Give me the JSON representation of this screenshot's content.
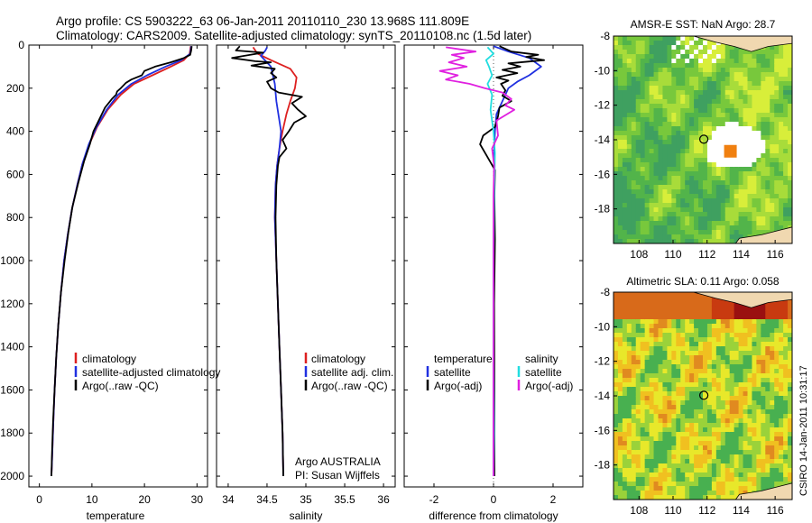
{
  "header": {
    "line1": "Argo profile: CS 5903222_63 06-Jan-2011 20110110_230 13.968S 111.809E",
    "line2": "Climatology: CARS2009. Satellite-adjusted climatology: synTS_20110108.nc (1.5d later)"
  },
  "footer": {
    "institution": "Argo AUSTRALIA",
    "pi": "PI: Susan Wijffels",
    "stamp": "CSIRO 14-Jan-2011 10:31:17"
  },
  "colors": {
    "climatology": "#dd2020",
    "satellite": "#2030e0",
    "argo": "#000000",
    "sat_salinity": "#22dde0",
    "argo_salinity": "#e020e0"
  },
  "chart_data": [
    {
      "id": "temperature",
      "type": "line",
      "xlabel": "temperature",
      "ylabel": "",
      "xlim": [
        -2,
        32
      ],
      "ylim": [
        2050,
        0
      ],
      "xticks": [
        0,
        10,
        20,
        30
      ],
      "yticks": [
        0,
        200,
        400,
        600,
        800,
        1000,
        1200,
        1400,
        1600,
        1800,
        2000
      ],
      "legend": [
        "climatology",
        "satellite-adjusted climatology",
        "Argo(..raw -QC)"
      ],
      "series": [
        {
          "name": "climatology",
          "color": "#dd2020",
          "points": [
            [
              28.8,
              5
            ],
            [
              28.6,
              40
            ],
            [
              27.5,
              70
            ],
            [
              25,
              100
            ],
            [
              21.5,
              140
            ],
            [
              18,
              180
            ],
            [
              15.5,
              230
            ],
            [
              13,
              300
            ],
            [
              11,
              380
            ],
            [
              9.5,
              460
            ],
            [
              8.2,
              550
            ],
            [
              7.2,
              650
            ],
            [
              6.2,
              760
            ],
            [
              5.4,
              880
            ],
            [
              4.7,
              1000
            ],
            [
              4.1,
              1150
            ],
            [
              3.6,
              1300
            ],
            [
              3.2,
              1450
            ],
            [
              2.9,
              1600
            ],
            [
              2.65,
              1750
            ],
            [
              2.45,
              1900
            ],
            [
              2.3,
              2000
            ]
          ]
        },
        {
          "name": "satellite-adjusted climatology",
          "color": "#2030e0",
          "points": [
            [
              28.9,
              5
            ],
            [
              28.7,
              40
            ],
            [
              27,
              70
            ],
            [
              24,
              100
            ],
            [
              20.5,
              140
            ],
            [
              17.5,
              180
            ],
            [
              15,
              230
            ],
            [
              12.8,
              300
            ],
            [
              10.9,
              380
            ],
            [
              9.4,
              460
            ],
            [
              8.2,
              550
            ],
            [
              7.2,
              650
            ],
            [
              6.2,
              760
            ],
            [
              5.4,
              880
            ],
            [
              4.7,
              1000
            ],
            [
              4.1,
              1150
            ],
            [
              3.6,
              1300
            ],
            [
              3.2,
              1450
            ],
            [
              2.9,
              1600
            ],
            [
              2.65,
              1750
            ],
            [
              2.45,
              1900
            ],
            [
              2.3,
              2000
            ]
          ]
        },
        {
          "name": "Argo(..raw -QC)",
          "color": "#000000",
          "points": [
            [
              29,
              5
            ],
            [
              28.9,
              25
            ],
            [
              28.7,
              45
            ],
            [
              27.5,
              60
            ],
            [
              25,
              80
            ],
            [
              22,
              100
            ],
            [
              20,
              120
            ],
            [
              19.5,
              140
            ],
            [
              17.5,
              160
            ],
            [
              16.5,
              175
            ],
            [
              15.5,
              200
            ],
            [
              14.8,
              215
            ],
            [
              14.6,
              230
            ],
            [
              13.8,
              250
            ],
            [
              12.5,
              290
            ],
            [
              11.5,
              340
            ],
            [
              10.3,
              400
            ],
            [
              9.6,
              460
            ],
            [
              8.5,
              540
            ],
            [
              7.4,
              640
            ],
            [
              6.3,
              750
            ],
            [
              5.5,
              870
            ],
            [
              4.8,
              1000
            ],
            [
              4.1,
              1150
            ],
            [
              3.6,
              1300
            ],
            [
              3.2,
              1450
            ],
            [
              2.9,
              1600
            ],
            [
              2.6,
              1750
            ],
            [
              2.4,
              1900
            ],
            [
              2.3,
              2000
            ]
          ]
        }
      ]
    },
    {
      "id": "salinity",
      "type": "line",
      "xlabel": "salinity",
      "ylabel": "",
      "xlim": [
        33.85,
        36.15
      ],
      "ylim": [
        2050,
        0
      ],
      "xticks": [
        34,
        34.5,
        35,
        35.5,
        36
      ],
      "legend": [
        "climatology",
        "satellite adj. clim.",
        "Argo(..raw -QC)"
      ],
      "series": [
        {
          "name": "climatology",
          "color": "#dd2020",
          "points": [
            [
              34.32,
              10
            ],
            [
              34.38,
              40
            ],
            [
              34.55,
              70
            ],
            [
              34.8,
              110
            ],
            [
              34.88,
              150
            ],
            [
              34.86,
              200
            ],
            [
              34.8,
              260
            ],
            [
              34.75,
              320
            ],
            [
              34.7,
              400
            ],
            [
              34.66,
              480
            ],
            [
              34.63,
              560
            ],
            [
              34.61,
              650
            ],
            [
              34.6,
              800
            ],
            [
              34.62,
              1000
            ],
            [
              34.64,
              1200
            ],
            [
              34.66,
              1400
            ],
            [
              34.68,
              1600
            ],
            [
              34.7,
              1800
            ],
            [
              34.71,
              2000
            ]
          ]
        },
        {
          "name": "satellite adj. clim.",
          "color": "#2030e0",
          "points": [
            [
              34.5,
              10
            ],
            [
              34.48,
              25
            ],
            [
              34.42,
              50
            ],
            [
              34.55,
              100
            ],
            [
              34.6,
              180
            ],
            [
              34.62,
              260
            ],
            [
              34.65,
              330
            ],
            [
              34.68,
              400
            ],
            [
              34.66,
              480
            ],
            [
              34.63,
              560
            ],
            [
              34.61,
              650
            ],
            [
              34.6,
              800
            ],
            [
              34.62,
              1000
            ],
            [
              34.64,
              1200
            ],
            [
              34.66,
              1400
            ],
            [
              34.68,
              1600
            ],
            [
              34.7,
              1800
            ],
            [
              34.71,
              2000
            ]
          ]
        },
        {
          "name": "Argo(..raw -QC)",
          "color": "#000000",
          "points": [
            [
              34.15,
              5
            ],
            [
              34.1,
              25
            ],
            [
              34.45,
              35
            ],
            [
              34.2,
              50
            ],
            [
              34.05,
              60
            ],
            [
              34.35,
              75
            ],
            [
              34.55,
              80
            ],
            [
              34.38,
              90
            ],
            [
              34.3,
              95
            ],
            [
              34.6,
              110
            ],
            [
              34.55,
              130
            ],
            [
              34.62,
              150
            ],
            [
              34.5,
              170
            ],
            [
              34.55,
              200
            ],
            [
              34.65,
              220
            ],
            [
              34.95,
              240
            ],
            [
              34.82,
              270
            ],
            [
              34.9,
              300
            ],
            [
              35.0,
              330
            ],
            [
              34.85,
              360
            ],
            [
              34.78,
              400
            ],
            [
              34.7,
              440
            ],
            [
              34.75,
              480
            ],
            [
              34.66,
              520
            ],
            [
              34.64,
              560
            ],
            [
              34.62,
              650
            ],
            [
              34.61,
              800
            ],
            [
              34.62,
              1000
            ],
            [
              34.64,
              1200
            ],
            [
              34.66,
              1400
            ],
            [
              34.68,
              1600
            ],
            [
              34.7,
              1800
            ],
            [
              34.71,
              2000
            ]
          ]
        }
      ]
    },
    {
      "id": "difference",
      "type": "line",
      "xlabel": "difference from climatology",
      "ylabel": "",
      "xlim": [
        -3,
        3
      ],
      "ylim": [
        2050,
        0
      ],
      "xticks": [
        -2,
        0,
        2
      ],
      "legend_left_title": "temperature",
      "legend_right_title": "salinity",
      "legend": [
        "satellite",
        "Argo(-adj)",
        "satellite",
        "Argo(-adj)"
      ],
      "series": [
        {
          "name": "temperature satellite",
          "color": "#2030e0",
          "points": [
            [
              0,
              5
            ],
            [
              0.5,
              30
            ],
            [
              1.2,
              60
            ],
            [
              1.6,
              100
            ],
            [
              1.2,
              140
            ],
            [
              0.8,
              170
            ],
            [
              0.5,
              200
            ],
            [
              0.3,
              260
            ],
            [
              0.1,
              320
            ],
            [
              0.05,
              400
            ],
            [
              0.02,
              500
            ],
            [
              0.02,
              700
            ],
            [
              0,
              1000
            ],
            [
              0,
              2000
            ]
          ]
        },
        {
          "name": "temperature Argo(-adj)",
          "color": "#000000",
          "points": [
            [
              0.2,
              5
            ],
            [
              0.6,
              30
            ],
            [
              1.5,
              45
            ],
            [
              1.1,
              55
            ],
            [
              1.7,
              70
            ],
            [
              0.5,
              85
            ],
            [
              0.9,
              100
            ],
            [
              0.3,
              115
            ],
            [
              0.8,
              130
            ],
            [
              0.1,
              150
            ],
            [
              0.5,
              165
            ],
            [
              0.25,
              180
            ],
            [
              0.4,
              210
            ],
            [
              0.3,
              235
            ],
            [
              0.6,
              260
            ],
            [
              0.2,
              290
            ],
            [
              0.15,
              330
            ],
            [
              0.05,
              380
            ],
            [
              -0.35,
              420
            ],
            [
              -0.45,
              460
            ],
            [
              -0.2,
              520
            ],
            [
              0.05,
              580
            ],
            [
              0.03,
              700
            ],
            [
              0.05,
              900
            ],
            [
              0.02,
              1200
            ],
            [
              0.03,
              1600
            ],
            [
              0.03,
              2000
            ]
          ]
        },
        {
          "name": "salinity satellite",
          "color": "#22dde0",
          "points": [
            [
              -0.2,
              10
            ],
            [
              0,
              40
            ],
            [
              -0.25,
              70
            ],
            [
              -0.15,
              100
            ],
            [
              -0.05,
              140
            ],
            [
              -0.2,
              180
            ],
            [
              -0.05,
              230
            ],
            [
              -0.1,
              300
            ],
            [
              0,
              400
            ],
            [
              0.05,
              500
            ],
            [
              0.02,
              700
            ],
            [
              0,
              1000
            ],
            [
              0,
              1400
            ],
            [
              0.02,
              1800
            ],
            [
              0,
              2000
            ]
          ]
        },
        {
          "name": "salinity Argo(-adj)",
          "color": "#e020e0",
          "points": [
            [
              -1.6,
              10
            ],
            [
              -0.6,
              30
            ],
            [
              -1.4,
              45
            ],
            [
              -1.0,
              60
            ],
            [
              -1.5,
              80
            ],
            [
              -0.9,
              100
            ],
            [
              -1.8,
              120
            ],
            [
              -1.2,
              140
            ],
            [
              -1.6,
              160
            ],
            [
              -0.8,
              180
            ],
            [
              -0.3,
              200
            ],
            [
              0.3,
              220
            ],
            [
              0.6,
              250
            ],
            [
              0.4,
              280
            ],
            [
              0.7,
              300
            ],
            [
              0.1,
              350
            ],
            [
              0.15,
              420
            ],
            [
              -0.05,
              480
            ],
            [
              0.02,
              560
            ],
            [
              0,
              700
            ],
            [
              0,
              1000
            ],
            [
              0,
              2000
            ]
          ]
        }
      ]
    },
    {
      "id": "sst_map",
      "type": "heatmap",
      "title": "AMSR-E SST: NaN Argo: 28.7",
      "xlim": [
        106.5,
        117
      ],
      "ylim": [
        -20,
        -8
      ],
      "xticks": [
        108,
        110,
        112,
        114,
        116
      ],
      "yticks": [
        -8,
        -10,
        -12,
        -14,
        -16,
        -18
      ],
      "argo_lon": 111.809,
      "argo_lat": -13.968
    },
    {
      "id": "sla_map",
      "type": "heatmap",
      "title": "Altimetric SLA: 0.11 Argo: 0.058",
      "xlim": [
        106.5,
        117
      ],
      "ylim": [
        -20,
        -8
      ],
      "xticks": [
        108,
        110,
        112,
        114,
        116
      ],
      "yticks": [
        -8,
        -10,
        -12,
        -14,
        -16,
        -18
      ],
      "argo_lon": 111.809,
      "argo_lat": -13.968
    }
  ]
}
